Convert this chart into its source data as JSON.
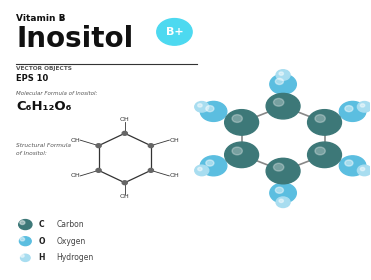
{
  "bg_color": "#ffffff",
  "title_vitamin": "Vitamin B",
  "title_sub": "8",
  "title_main": "Inositol",
  "subtitle1": "VECTOR OBJECTS",
  "subtitle2": "EPS 10",
  "mol_formula_label": "Molecular Formula of Inositol:",
  "mol_formula": "C₆H₁₂O₆",
  "struct_label1": "Structural Formula",
  "struct_label2": "of Inositol:",
  "legend": [
    {
      "symbol": "C",
      "label": "Carbon",
      "color": "#3d7878"
    },
    {
      "symbol": "O",
      "label": "Oxygen",
      "color": "#5bbee0"
    },
    {
      "symbol": "H",
      "label": "Hydrogen",
      "color": "#a8ddf0"
    }
  ],
  "badge_color": "#4dd9f0",
  "badge_text": "B+",
  "carbon_color": "#3d7878",
  "oxygen_color": "#5bbee0",
  "hydrogen_color": "#a8ddf0",
  "bond_color": "#888888"
}
